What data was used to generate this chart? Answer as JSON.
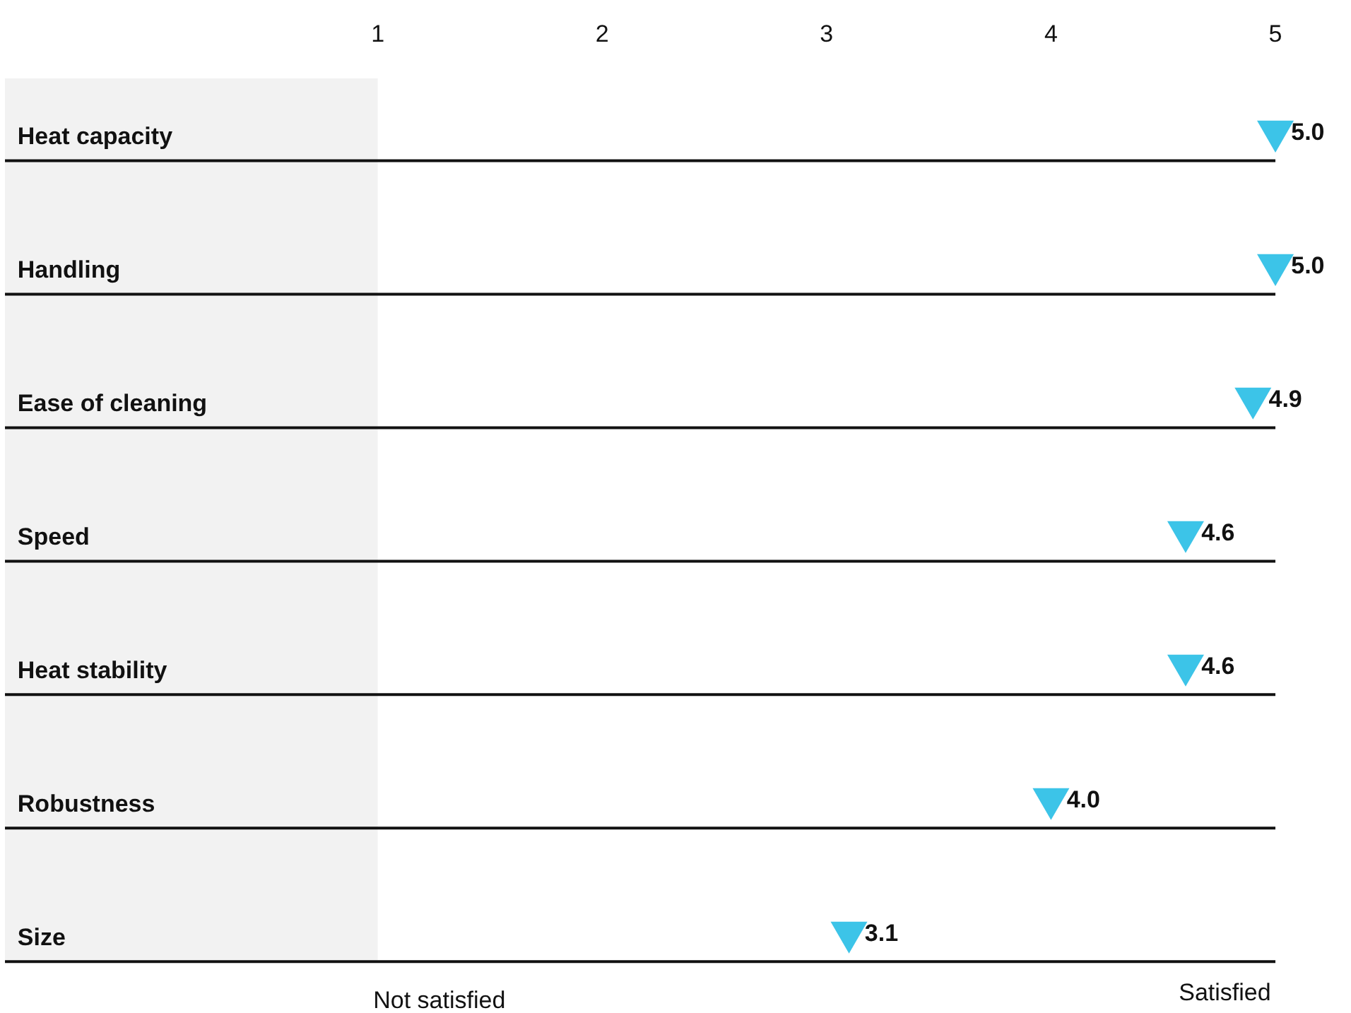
{
  "chart_data": {
    "type": "scatter",
    "orientation": "horizontal",
    "categories": [
      "Heat capacity",
      "Handling",
      "Ease of cleaning",
      "Speed",
      "Heat stability",
      "Robustness",
      "Size"
    ],
    "values": [
      5.0,
      5.0,
      4.9,
      4.6,
      4.6,
      4.0,
      3.1
    ],
    "value_labels": [
      "5.0",
      "5.0",
      "4.9",
      "4.6",
      "4.6",
      "4.0",
      "3.1"
    ],
    "color": "#3cc4e8",
    "xlim": [
      1,
      5
    ],
    "xticks": [
      1,
      2,
      3,
      4,
      5
    ],
    "grid": false,
    "annotations": [
      "Not satisfied",
      "Satisfied"
    ]
  }
}
